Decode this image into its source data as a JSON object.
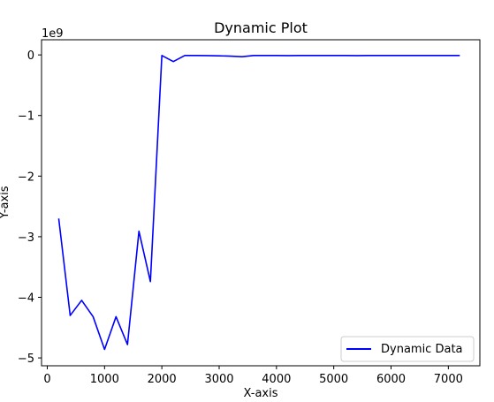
{
  "colors": {
    "series": "#0000ff",
    "axes": "#000000",
    "background": "#ffffff",
    "legend_border": "#cccccc"
  },
  "chart_data": {
    "type": "line",
    "title": "Dynamic Plot",
    "xlabel": "X-axis",
    "ylabel": "Y-axis",
    "y_offset_label": "1e9",
    "xlim": [
      -100,
      7550
    ],
    "ylim": [
      -5.13,
      0.25
    ],
    "xticks": [
      0,
      1000,
      2000,
      3000,
      4000,
      5000,
      6000,
      7000
    ],
    "xtick_labels": [
      "0",
      "1000",
      "2000",
      "3000",
      "4000",
      "5000",
      "6000",
      "7000"
    ],
    "yticks": [
      0,
      -1,
      -2,
      -3,
      -4,
      -5
    ],
    "ytick_labels": [
      "0",
      "−1",
      "−2",
      "−3",
      "−4",
      "−5"
    ],
    "grid": false,
    "legend_position": "bottom-right",
    "series": [
      {
        "name": "Dynamic Data",
        "color": "#0000ff",
        "x": [
          200,
          400,
          600,
          800,
          1000,
          1200,
          1400,
          1600,
          1800,
          2000,
          2200,
          2400,
          2600,
          2800,
          3000,
          3200,
          3400,
          3600,
          3800,
          4000,
          4200,
          4400,
          4600,
          4800,
          5000,
          5200,
          5400,
          5600,
          5800,
          6000,
          6200,
          6400,
          6600,
          6800,
          7000,
          7200
        ],
        "y": [
          -2.7,
          -4.3,
          -4.05,
          -4.32,
          -4.86,
          -4.32,
          -4.78,
          -2.91,
          -3.74,
          -0.01,
          -0.11,
          -0.01,
          -0.01,
          -0.012,
          -0.015,
          -0.02,
          -0.03,
          -0.01,
          -0.01,
          -0.01,
          -0.012,
          -0.01,
          -0.01,
          -0.01,
          -0.01,
          -0.01,
          -0.012,
          -0.01,
          -0.01,
          -0.01,
          -0.01,
          -0.01,
          -0.01,
          -0.01,
          -0.01,
          -0.01
        ]
      }
    ]
  }
}
